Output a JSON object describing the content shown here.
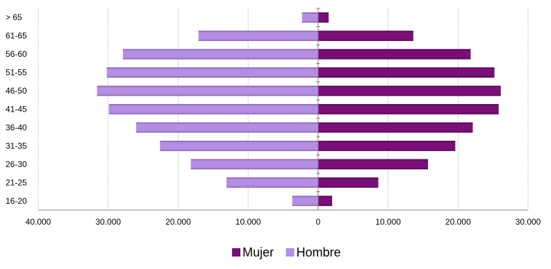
{
  "chart_data": {
    "type": "bar",
    "orientation": "horizontal",
    "layout": "population-pyramid",
    "categories": [
      "16-20",
      "21-25",
      "26-30",
      "31-35",
      "36-40",
      "41-45",
      "46-50",
      "51-55",
      "56-60",
      "61-65",
      "> 65"
    ],
    "series": [
      {
        "name": "Mujer",
        "color": "#7a0f78",
        "side": "right",
        "values": [
          2000,
          8600,
          15700,
          19600,
          22100,
          25800,
          26100,
          25200,
          21800,
          13600,
          1500
        ]
      },
      {
        "name": "Hombre",
        "color": "#b48ee2",
        "side": "left",
        "values": [
          3700,
          13100,
          18200,
          22600,
          26000,
          29900,
          31600,
          30200,
          27900,
          17100,
          2300
        ]
      }
    ],
    "x_ticks": [
      "40.000",
      "30.000",
      "20.000",
      "10.000",
      "0",
      "10.000",
      "20.000",
      "30.000"
    ],
    "xlim": [
      -40000,
      30000
    ],
    "xgrid": true,
    "legend_position": "bottom"
  }
}
